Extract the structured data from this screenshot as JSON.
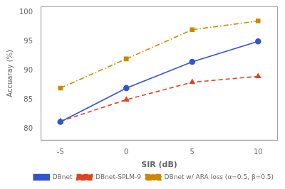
{
  "chart_data": {
    "type": "line",
    "x_label": "SIR (dB)",
    "y_label": "Accuaray (%)",
    "x": [
      -5,
      0,
      5,
      10
    ],
    "series": [
      {
        "name": "DBnet",
        "color": "#3355cc",
        "values": [
          81.2,
          87.0,
          91.5,
          95.0
        ],
        "marker": "circle",
        "line_style": "solid"
      },
      {
        "name": "DBnet-SPLM-9",
        "color": "#dd4422",
        "values": [
          81.3,
          85.0,
          88.0,
          89.0
        ],
        "marker": "triangle",
        "line_style": "dashed"
      },
      {
        "name": "DBnet w/ ARA loss (α=0.5, β=0.5)",
        "color": "#cc8800",
        "values": [
          87.0,
          92.0,
          97.0,
          98.5
        ],
        "marker": "square",
        "line_style": "dashdot"
      }
    ],
    "xlim": [
      -6.5,
      11.5
    ],
    "ylim": [
      78,
      101
    ],
    "xticks": [
      -5,
      0,
      5,
      10
    ],
    "yticks": [
      80,
      85,
      90,
      95,
      100
    ],
    "grid": false,
    "legend": "lower right"
  }
}
